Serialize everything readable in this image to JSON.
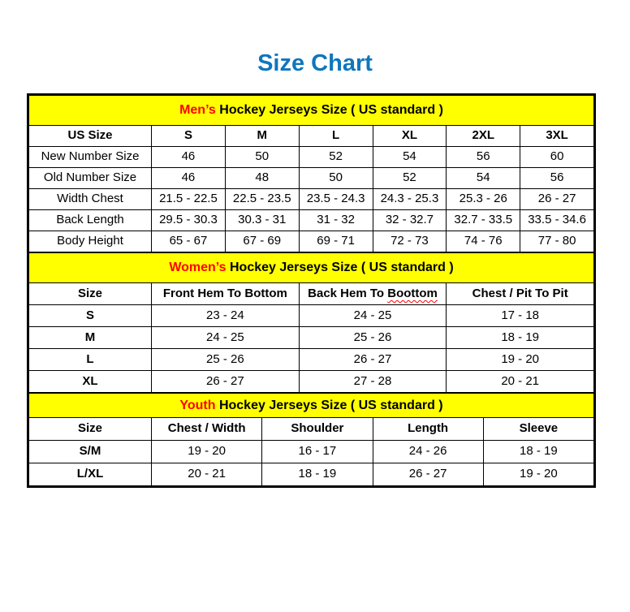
{
  "page": {
    "title": "Size Chart",
    "background": "#ffffff"
  },
  "colors": {
    "title_blue": "#0f76bd",
    "band_yellow": "#ffff00",
    "accent_red": "#ff0000",
    "text_black": "#000000",
    "border_black": "#000000"
  },
  "tables": [
    {
      "id": "mens",
      "band": {
        "highlight": "Men’s",
        "rest": " Hockey Jerseys Size ( US standard )"
      },
      "columns": [
        "US Size",
        "S",
        "M",
        "L",
        "XL",
        "2XL",
        "3XL"
      ],
      "bold_row_labels": false,
      "rows": [
        [
          "New Number Size",
          "46",
          "50",
          "52",
          "54",
          "56",
          "60"
        ],
        [
          "Old Number Size",
          "46",
          "48",
          "50",
          "52",
          "54",
          "56"
        ],
        [
          "Width Chest",
          "21.5 - 22.5",
          "22.5 - 23.5",
          "23.5 - 24.3",
          "24.3 - 25.3",
          "25.3 - 26",
          "26 - 27"
        ],
        [
          "Back Length",
          "29.5 - 30.3",
          "30.3 - 31",
          "31 - 32",
          "32 - 32.7",
          "32.7 - 33.5",
          "33.5 - 34.6"
        ],
        [
          "Body Height",
          "65 - 67",
          "67 - 69",
          "69 - 71",
          "72 - 73",
          "74 - 76",
          "77 - 80"
        ]
      ]
    },
    {
      "id": "womens",
      "band": {
        "highlight": "Women’s",
        "rest": " Hockey Jerseys Size ( US standard )"
      },
      "columns": [
        "Size",
        "Front Hem To Bottom",
        {
          "pre": "Back Hem To ",
          "wavy": "Boottom"
        },
        "Chest / Pit To Pit"
      ],
      "bold_row_labels": true,
      "rows": [
        [
          "S",
          "23 - 24",
          "24 - 25",
          "17 - 18"
        ],
        [
          "M",
          "24 - 25",
          "25 - 26",
          "18 - 19"
        ],
        [
          "L",
          "25 - 26",
          "26 - 27",
          "19 - 20"
        ],
        [
          "XL",
          "26 - 27",
          "27 - 28",
          "20 - 21"
        ]
      ]
    },
    {
      "id": "youth",
      "band": {
        "highlight": "Youth",
        "rest": " Hockey Jerseys Size ( US standard )"
      },
      "columns": [
        "Size",
        "Chest / Width",
        "Shoulder",
        "Length",
        "Sleeve"
      ],
      "bold_row_labels": true,
      "rows": [
        [
          "S/M",
          "19 - 20",
          "16 - 17",
          "24 - 26",
          "18 - 19"
        ],
        [
          "L/XL",
          "20 - 21",
          "18 - 19",
          "26 - 27",
          "19 - 20"
        ]
      ]
    }
  ]
}
